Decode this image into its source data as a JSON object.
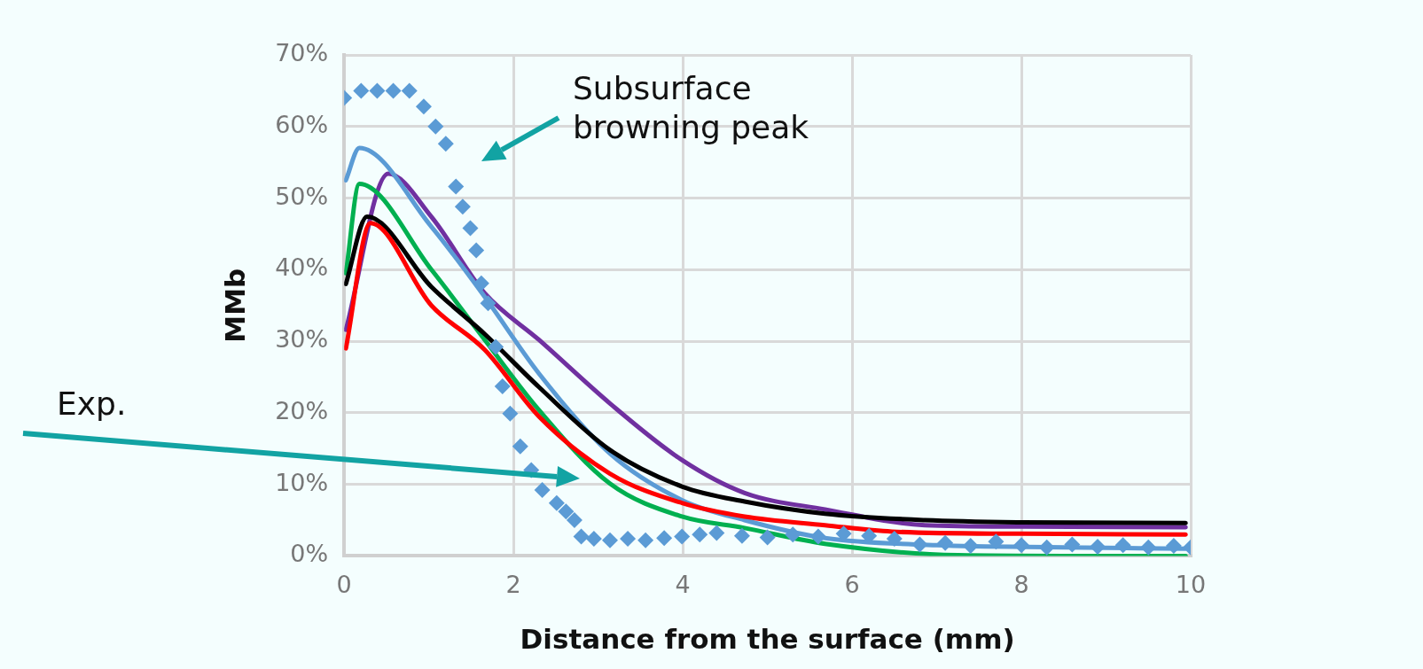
{
  "chart_data": {
    "type": "line",
    "xlabel": "Distance from the surface (mm)",
    "ylabel": "MMb",
    "xlim": [
      0,
      10
    ],
    "xticks": [
      0,
      2,
      4,
      6,
      8,
      10
    ],
    "ylim": [
      0,
      70
    ],
    "yticks": [
      {
        "value": 0,
        "label": "0%"
      },
      {
        "value": 10,
        "label": "10%"
      },
      {
        "value": 20,
        "label": "20%"
      },
      {
        "value": 30,
        "label": "30%"
      },
      {
        "value": 40,
        "label": "40%"
      },
      {
        "value": 50,
        "label": "50%"
      },
      {
        "value": 60,
        "label": "60%"
      },
      {
        "value": 70,
        "label": "70%"
      }
    ],
    "grid": true,
    "legend": false,
    "marker": "none",
    "line_style": "solid",
    "annotations": [
      "Subsurface browning peak",
      "Exp."
    ],
    "series": [
      {
        "color": "#ff0000",
        "x": [
          0.02,
          0.31,
          1.03,
          1.66,
          2.3,
          3.14,
          3.99,
          4.73,
          5.68,
          6.47,
          8,
          9.94
        ],
        "values": [
          29,
          46.5,
          35,
          28.8,
          19.5,
          11.5,
          7.4,
          5.5,
          4.3,
          3.4,
          3.1,
          3.0
        ]
      },
      {
        "color": "#000000",
        "x": [
          0.02,
          0.27,
          1.03,
          1.66,
          2.3,
          3.14,
          3.99,
          4.73,
          5.68,
          6.86,
          8,
          9.94
        ],
        "values": [
          38,
          47.4,
          37.6,
          31,
          23.6,
          14.8,
          9.7,
          7.6,
          5.9,
          5.0,
          4.7,
          4.6
        ]
      },
      {
        "color": "#00b050",
        "x": [
          0.02,
          0.18,
          1.03,
          1.66,
          2.3,
          3.14,
          3.99,
          4.73,
          5.68,
          7.25,
          8.5,
          9.94
        ],
        "values": [
          39.5,
          52,
          40,
          30.2,
          20.4,
          10.1,
          5.5,
          3.9,
          1.7,
          0.1,
          0,
          0
        ]
      },
      {
        "color": "#5b9bd5",
        "x": [
          0.02,
          0.18,
          1.03,
          1.66,
          2.3,
          3.14,
          3.99,
          4.73,
          5.68,
          7,
          8.5,
          9.94
        ],
        "values": [
          52.5,
          57,
          46,
          36.2,
          25.5,
          14.3,
          7.8,
          5,
          2.5,
          1.5,
          1.2,
          1
        ]
      },
      {
        "color": "#7030a0",
        "x": [
          0.02,
          0.52,
          1.03,
          1.66,
          2.3,
          3.14,
          3.99,
          4.73,
          5.68,
          6.86,
          8,
          9.94
        ],
        "values": [
          31.6,
          53.4,
          47.4,
          36.7,
          30.2,
          21.3,
          13.4,
          8.8,
          6.5,
          4.3,
          4.1,
          4.0
        ]
      },
      {
        "type": "scatter",
        "color": "#5b9bd5",
        "marker": "diamond",
        "x": [
          0,
          0.2,
          0.39,
          0.58,
          0.77,
          0.94,
          1.08,
          1.2,
          1.32,
          1.4,
          1.49,
          1.56,
          1.62,
          1.7,
          1.79,
          1.87,
          1.96,
          2.08,
          2.21,
          2.34,
          2.51,
          2.62,
          2.72,
          2.8,
          2.95,
          3.14,
          3.35,
          3.56,
          3.78,
          3.99,
          4.2,
          4.4,
          4.7,
          5.0,
          5.3,
          5.6,
          5.9,
          6.2,
          6.5,
          6.8,
          7.1,
          7.4,
          7.7,
          8.0,
          8.3,
          8.6,
          8.9,
          9.2,
          9.5,
          9.8,
          10
        ],
        "values": [
          64,
          65,
          65,
          65,
          65,
          62.8,
          60,
          57.6,
          51.6,
          48.8,
          45.8,
          42.7,
          38.1,
          35.3,
          29.2,
          23.7,
          19.9,
          15.3,
          12,
          9.2,
          7.4,
          6.2,
          5,
          2.7,
          2.4,
          2.2,
          2.4,
          2.2,
          2.5,
          2.7,
          3,
          3.2,
          2.8,
          2.6,
          3,
          2.7,
          3.1,
          2.8,
          2.4,
          1.6,
          1.8,
          1.4,
          2,
          1.5,
          1.2,
          1.6,
          1.3,
          1.5,
          1.2,
          1.4,
          1.2
        ]
      }
    ]
  }
}
